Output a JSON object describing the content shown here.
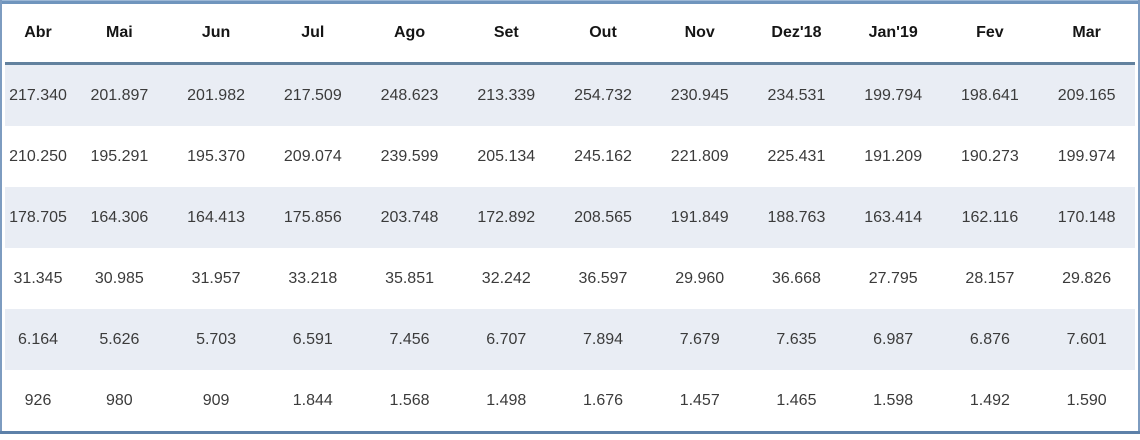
{
  "chart_data": {
    "type": "table",
    "columns": [
      "Abr",
      "Mai",
      "Jun",
      "Jul",
      "Ago",
      "Set",
      "Out",
      "Nov",
      "Dez'18",
      "Jan'19",
      "Fev",
      "Mar"
    ],
    "rows": [
      [
        "217.340",
        "201.897",
        "201.982",
        "217.509",
        "248.623",
        "213.339",
        "254.732",
        "230.945",
        "234.531",
        "199.794",
        "198.641",
        "209.165"
      ],
      [
        "210.250",
        "195.291",
        "195.370",
        "209.074",
        "239.599",
        "205.134",
        "245.162",
        "221.809",
        "225.431",
        "191.209",
        "190.273",
        "199.974"
      ],
      [
        "178.705",
        "164.306",
        "164.413",
        "175.856",
        "203.748",
        "172.892",
        "208.565",
        "191.849",
        "188.763",
        "163.414",
        "162.116",
        "170.148"
      ],
      [
        "31.345",
        "30.985",
        "31.957",
        "33.218",
        "35.851",
        "32.242",
        "36.597",
        "29.960",
        "36.668",
        "27.795",
        "28.157",
        "29.826"
      ],
      [
        "6.164",
        "5.626",
        "5.703",
        "6.591",
        "7.456",
        "6.707",
        "7.894",
        "7.679",
        "7.635",
        "6.987",
        "6.876",
        "7.601"
      ],
      [
        "926",
        "980",
        "909",
        "1.844",
        "1.568",
        "1.498",
        "1.676",
        "1.457",
        "1.465",
        "1.598",
        "1.492",
        "1.590"
      ]
    ],
    "row_banding": [
      "shaded",
      "white",
      "shaded",
      "white",
      "shaded",
      "white"
    ],
    "layout": {
      "grid": "off",
      "legend": "none",
      "header_style": "bold-centered",
      "value_alignment": "centered"
    }
  },
  "colors": {
    "accent_border_top": "#7095bd",
    "header_separator": "#62819e",
    "bottom_border": "#5d81a9",
    "side_border": "#7d9cc0",
    "row_shade": "#e9edf4",
    "text": "#3b3b3b",
    "header_text": "#151515"
  }
}
